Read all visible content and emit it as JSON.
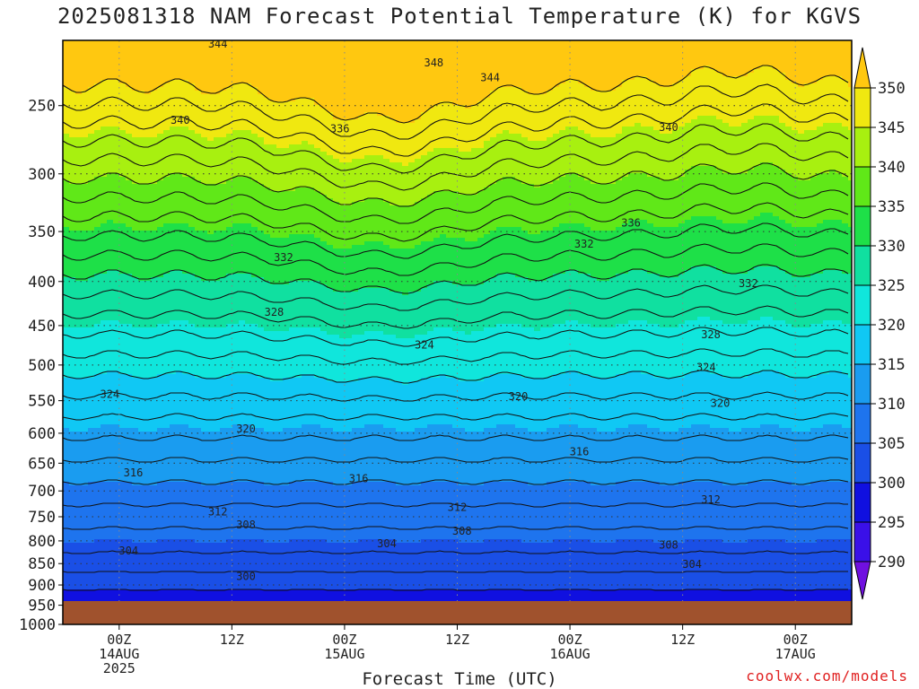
{
  "chart_data": {
    "type": "heatmap",
    "title": "2025081318 NAM Forecast Potential Temperature (K) for KGVS",
    "xlabel": "Forecast Time (UTC)",
    "ylabel": "",
    "y_scale": "log-pressure",
    "ylim_hPa": [
      1000,
      200
    ],
    "y_ticks": [
      250,
      300,
      350,
      400,
      450,
      500,
      550,
      600,
      650,
      700,
      750,
      800,
      850,
      900,
      950,
      1000
    ],
    "x_range_hours": [
      0,
      84
    ],
    "x_ticks": [
      {
        "hour": 6,
        "lines": [
          "00Z",
          "14AUG",
          "2025"
        ]
      },
      {
        "hour": 18,
        "lines": [
          "12Z"
        ]
      },
      {
        "hour": 30,
        "lines": [
          "00Z",
          "15AUG"
        ]
      },
      {
        "hour": 42,
        "lines": [
          "12Z"
        ]
      },
      {
        "hour": 54,
        "lines": [
          "00Z",
          "16AUG"
        ]
      },
      {
        "hour": 66,
        "lines": [
          "12Z"
        ]
      },
      {
        "hour": 78,
        "lines": [
          "00Z",
          "17AUG"
        ]
      }
    ],
    "grid": true,
    "colorbar": {
      "location": "right",
      "levels": [
        290,
        295,
        300,
        305,
        310,
        315,
        320,
        325,
        330,
        335,
        340,
        345,
        350
      ],
      "labels": [
        "290",
        "295",
        "300",
        "305",
        "310",
        "315",
        "320",
        "325",
        "330",
        "335",
        "340",
        "345",
        "350"
      ],
      "colors": [
        "#7010e0",
        "#3a10e8",
        "#1010e0",
        "#1a4fe6",
        "#1e74ee",
        "#1a9cf0",
        "#10c8f4",
        "#10e6dc",
        "#10e0a0",
        "#1ee048",
        "#60e818",
        "#a8f010",
        "#f0e810",
        "#ffc810"
      ]
    },
    "contour_labels": [
      {
        "value": "344",
        "hour": 16.5,
        "p": 212
      },
      {
        "value": "348",
        "hour": 39.5,
        "p": 223
      },
      {
        "value": "344",
        "hour": 45.5,
        "p": 232
      },
      {
        "value": "340",
        "hour": 12.5,
        "p": 260
      },
      {
        "value": "336",
        "hour": 29.5,
        "p": 266
      },
      {
        "value": "340",
        "hour": 64.5,
        "p": 265
      },
      {
        "value": "336",
        "hour": 60.5,
        "p": 342
      },
      {
        "value": "332",
        "hour": 23.5,
        "p": 375
      },
      {
        "value": "332",
        "hour": 55.5,
        "p": 362
      },
      {
        "value": "332",
        "hour": 73,
        "p": 402
      },
      {
        "value": "328",
        "hour": 22.5,
        "p": 434
      },
      {
        "value": "328",
        "hour": 69,
        "p": 461
      },
      {
        "value": "324",
        "hour": 38.5,
        "p": 474
      },
      {
        "value": "324",
        "hour": 68.5,
        "p": 503
      },
      {
        "value": "324",
        "hour": 5,
        "p": 541
      },
      {
        "value": "320",
        "hour": 48.5,
        "p": 544
      },
      {
        "value": "320",
        "hour": 70,
        "p": 554
      },
      {
        "value": "320",
        "hour": 19.5,
        "p": 593
      },
      {
        "value": "316",
        "hour": 55,
        "p": 630
      },
      {
        "value": "316",
        "hour": 7.5,
        "p": 667
      },
      {
        "value": "316",
        "hour": 31.5,
        "p": 677
      },
      {
        "value": "312",
        "hour": 16.5,
        "p": 740
      },
      {
        "value": "312",
        "hour": 42,
        "p": 731
      },
      {
        "value": "312",
        "hour": 69,
        "p": 717
      },
      {
        "value": "308",
        "hour": 19.5,
        "p": 766
      },
      {
        "value": "308",
        "hour": 42.5,
        "p": 779
      },
      {
        "value": "308",
        "hour": 64.5,
        "p": 809
      },
      {
        "value": "304",
        "hour": 7,
        "p": 822
      },
      {
        "value": "304",
        "hour": 34.5,
        "p": 806
      },
      {
        "value": "304",
        "hour": 67,
        "p": 852
      },
      {
        "value": "300",
        "hour": 19.5,
        "p": 880
      }
    ]
  },
  "credit": "coolwx.com/models"
}
